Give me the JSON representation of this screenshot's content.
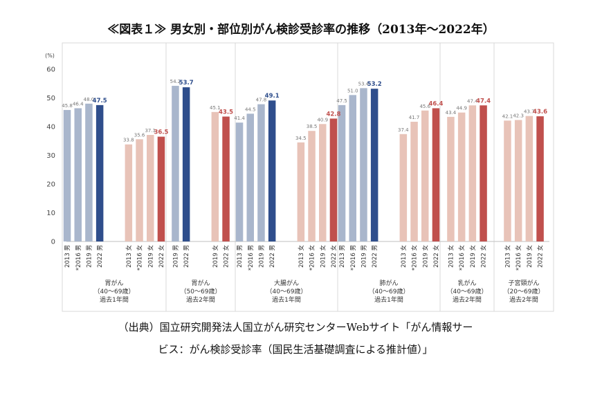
{
  "title": "≪図表１≫ 男女別・部位別がん検診受診率の推移（2013年〜2022年）",
  "source_line1": "（出典）国立研究開発法人国立がん研究センターWebサイト「がん情報サー",
  "source_line2": "ビス：がん検診受診率（国民生活基礎調査による推計値）」",
  "colors": {
    "male_light": "#a9b6cc",
    "male_dark": "#2f4e8c",
    "female_light": "#e8c3b8",
    "female_dark": "#c0504d",
    "male_label": "#2f4e8c",
    "female_label": "#c0504d"
  },
  "chart_data": {
    "type": "bar",
    "ylabel": "(%)",
    "ylim": [
      0,
      60
    ],
    "yticks": [
      "0",
      "10",
      "20",
      "30",
      "40",
      "50",
      "60"
    ],
    "groups": [
      {
        "label_lines": [
          "胃がん",
          "（40〜69歳）",
          "過去1年間"
        ],
        "subgroups": [
          {
            "sex": "male",
            "bars": [
              {
                "x": "2013 男",
                "value": 45.8,
                "label": "45.8"
              },
              {
                "x": "*2016 男",
                "value": 46.4,
                "label": "46.4"
              },
              {
                "x": "2019 男",
                "value": 48.0,
                "label": "48.0"
              },
              {
                "x": "2022 男",
                "value": 47.5,
                "label": "47.5",
                "latest": true
              }
            ]
          },
          {
            "sex": "female",
            "bars": [
              {
                "x": "2013 女",
                "value": 33.8,
                "label": "33.8"
              },
              {
                "x": "*2016 女",
                "value": 35.6,
                "label": "35.6"
              },
              {
                "x": "2019 女",
                "value": 37.1,
                "label": "37.1"
              },
              {
                "x": "2022 女",
                "value": 36.5,
                "label": "36.5",
                "latest": true
              }
            ]
          }
        ]
      },
      {
        "label_lines": [
          "胃がん",
          "（50〜69歳）",
          "過去2年間"
        ],
        "subgroups": [
          {
            "sex": "male",
            "bars": [
              {
                "x": "2019 男",
                "value": 54.2,
                "label": "54.2"
              },
              {
                "x": "2022 男",
                "value": 53.7,
                "label": "53.7",
                "latest": true
              }
            ]
          },
          {
            "sex": "female",
            "bars": [
              {
                "x": "2019 女",
                "value": 45.1,
                "label": "45.1"
              },
              {
                "x": "2022 女",
                "value": 43.5,
                "label": "43.5",
                "latest": true
              }
            ]
          }
        ]
      },
      {
        "label_lines": [
          "大腸がん",
          "（40〜69歳）",
          "過去1年間"
        ],
        "subgroups": [
          {
            "sex": "male",
            "bars": [
              {
                "x": "2013 男",
                "value": 41.4,
                "label": "41.4"
              },
              {
                "x": "*2016 男",
                "value": 44.5,
                "label": "44.5"
              },
              {
                "x": "2019 男",
                "value": 47.8,
                "label": "47.8"
              },
              {
                "x": "2022 男",
                "value": 49.1,
                "label": "49.1",
                "latest": true
              }
            ]
          },
          {
            "sex": "female",
            "bars": [
              {
                "x": "2013 女",
                "value": 34.5,
                "label": "34.5"
              },
              {
                "x": "*2016 女",
                "value": 38.5,
                "label": "38.5"
              },
              {
                "x": "2019 女",
                "value": 40.9,
                "label": "40.9"
              },
              {
                "x": "2022 女",
                "value": 42.8,
                "label": "42.8",
                "latest": true
              }
            ]
          }
        ]
      },
      {
        "label_lines": [
          "肺がん",
          "（40〜69歳）",
          "過去1年間"
        ],
        "subgroups": [
          {
            "sex": "male",
            "bars": [
              {
                "x": "2013 男",
                "value": 47.5,
                "label": "47.5"
              },
              {
                "x": "*2016 男",
                "value": 51.0,
                "label": "51.0"
              },
              {
                "x": "2019 男",
                "value": 53.4,
                "label": "53.4"
              },
              {
                "x": "2022 男",
                "value": 53.2,
                "label": "53.2",
                "latest": true
              }
            ]
          },
          {
            "sex": "female",
            "bars": [
              {
                "x": "2013 女",
                "value": 37.4,
                "label": "37.4"
              },
              {
                "x": "*2016 女",
                "value": 41.7,
                "label": "41.7"
              },
              {
                "x": "2019 女",
                "value": 45.6,
                "label": "45.6"
              },
              {
                "x": "2022 女",
                "value": 46.4,
                "label": "46.4",
                "latest": true
              }
            ]
          }
        ]
      },
      {
        "label_lines": [
          "乳がん",
          "（40〜69歳）",
          "過去2年間"
        ],
        "subgroups": [
          {
            "sex": "female",
            "bars": [
              {
                "x": "2013 女",
                "value": 43.4,
                "label": "43.4"
              },
              {
                "x": "*2016 女",
                "value": 44.9,
                "label": "44.9"
              },
              {
                "x": "2019 女",
                "value": 47.4,
                "label": "47.4"
              },
              {
                "x": "2022 女",
                "value": 47.4,
                "label": "47.4",
                "latest": true
              }
            ]
          }
        ]
      },
      {
        "label_lines": [
          "子宮頸がん",
          "（20〜69歳）",
          "過去2年間"
        ],
        "subgroups": [
          {
            "sex": "female",
            "bars": [
              {
                "x": "2013 女",
                "value": 42.1,
                "label": "42.1"
              },
              {
                "x": "*2016 女",
                "value": 42.3,
                "label": "42.3"
              },
              {
                "x": "2019 女",
                "value": 43.7,
                "label": "43.7"
              },
              {
                "x": "2022 女",
                "value": 43.6,
                "label": "43.6",
                "latest": true
              }
            ]
          }
        ]
      }
    ]
  }
}
